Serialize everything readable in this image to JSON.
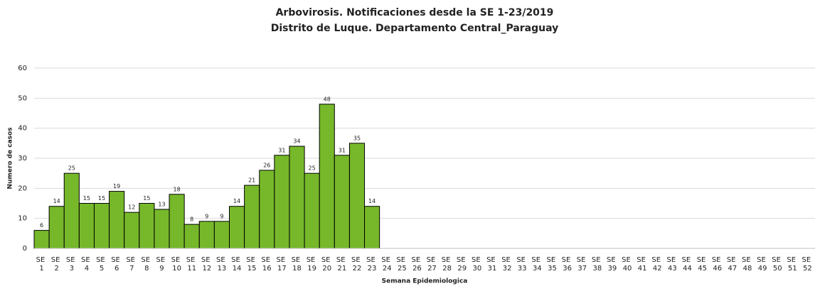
{
  "chart_data": {
    "type": "bar",
    "title": "Arbovirosis. Notificaciones desde la SE 1-23/2019",
    "subtitle": "Distrito de Luque. Departamento Central_Paraguay",
    "x_label": "Semana Epidemiologica",
    "y_label": "Numero de casos",
    "categories": [
      "SE 1",
      "SE 2",
      "SE 3",
      "SE 4",
      "SE 5",
      "SE 6",
      "SE 7",
      "SE 8",
      "SE 9",
      "SE 10",
      "SE 11",
      "SE 12",
      "SE 13",
      "SE 14",
      "SE 15",
      "SE 16",
      "SE 17",
      "SE 18",
      "SE 19",
      "SE 20",
      "SE 21",
      "SE 22",
      "SE 23",
      "SE 24",
      "SE 25",
      "SE 26",
      "SE 27",
      "SE 28",
      "SE 29",
      "SE 30",
      "SE 31",
      "SE 32",
      "SE 33",
      "SE 34",
      "SE 35",
      "SE 36",
      "SE 37",
      "SE 38",
      "SE 39",
      "SE 40",
      "SE 41",
      "SE 42",
      "SE 43",
      "SE 44",
      "SE 45",
      "SE 46",
      "SE 47",
      "SE 48",
      "SE 49",
      "SE 50",
      "SE 51",
      "SE 52"
    ],
    "values": [
      6,
      14,
      25,
      15,
      15,
      19,
      12,
      15,
      13,
      18,
      8,
      9,
      9,
      14,
      21,
      26,
      31,
      34,
      25,
      48,
      31,
      35,
      14,
      null,
      null,
      null,
      null,
      null,
      null,
      null,
      null,
      null,
      null,
      null,
      null,
      null,
      null,
      null,
      null,
      null,
      null,
      null,
      null,
      null,
      null,
      null,
      null,
      null,
      null,
      null,
      null,
      null
    ],
    "color": "#76b82a",
    "ylim": [
      0,
      60
    ],
    "yticks": [
      0,
      10,
      20,
      30,
      40,
      50,
      60
    ],
    "grid": true
  }
}
